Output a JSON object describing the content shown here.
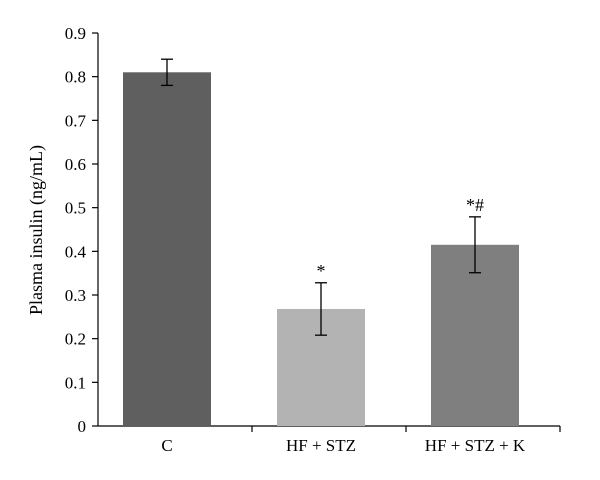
{
  "chart_data": {
    "type": "bar",
    "title": "",
    "xlabel": "",
    "ylabel": "Plasma insulin (ng/mL)",
    "ylim": [
      0,
      0.9
    ],
    "yticks": [
      0,
      0.1,
      0.2,
      0.3,
      0.4,
      0.5,
      0.6,
      0.7,
      0.8,
      0.9
    ],
    "ytick_labels": [
      "0",
      "0.1",
      "0.2",
      "0.3",
      "0.4",
      "0.5",
      "0.6",
      "0.7",
      "0.8",
      "0.9"
    ],
    "grid": false,
    "legend": "none",
    "categories": [
      "C",
      "HF + STZ",
      "HF + STZ + K"
    ],
    "values": [
      0.81,
      0.268,
      0.415
    ],
    "errors": [
      0.03,
      0.06,
      0.064
    ],
    "annotations": [
      "",
      "*",
      "*#"
    ],
    "colors": [
      "#5f5f5f",
      "#b3b3b3",
      "#7f7f7f"
    ]
  }
}
